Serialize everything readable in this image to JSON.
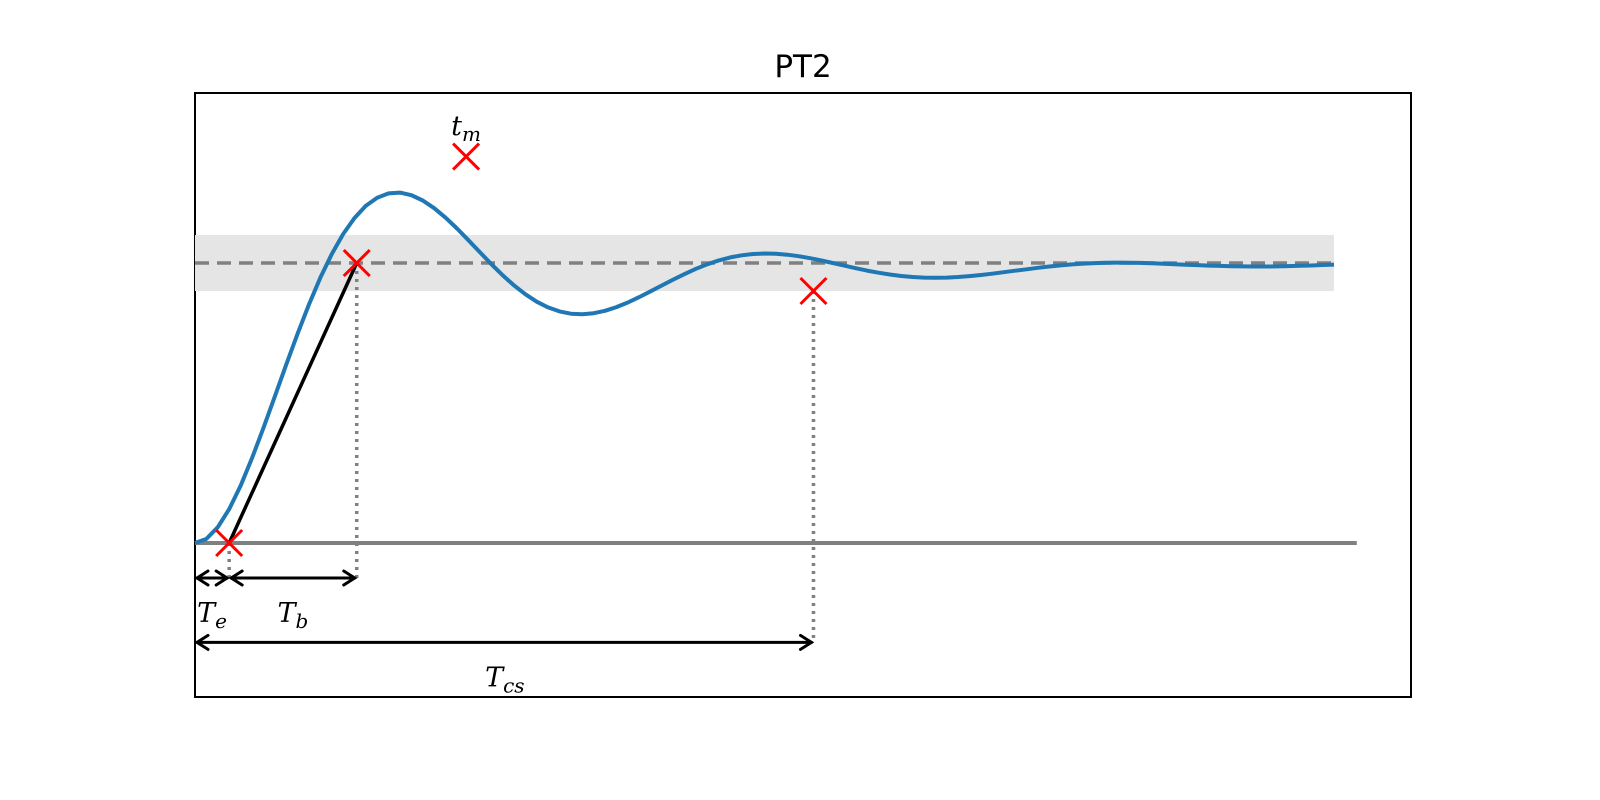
{
  "chart_data": {
    "type": "line",
    "title": "PT2",
    "xlabel": "",
    "ylabel": "",
    "xlim": [
      0,
      10
    ],
    "ylim": [
      -0.27,
      1.4
    ],
    "grid": false,
    "axis_ticks": false,
    "series": [
      {
        "values_x": [
          0,
          0.1,
          0.2,
          0.3,
          0.4,
          0.5,
          0.6,
          0.7,
          0.8,
          0.9,
          1.0,
          1.1,
          1.2,
          1.3,
          1.4,
          1.5,
          1.6,
          1.7,
          1.8,
          1.9,
          2.0,
          2.1,
          2.2,
          2.3,
          2.4,
          2.5,
          2.6,
          2.7,
          2.8,
          2.9,
          3.0,
          3.1,
          3.2,
          3.3,
          3.4,
          3.5,
          3.6,
          3.7,
          3.8,
          3.9,
          4.0,
          4.1,
          4.2,
          4.3,
          4.4,
          4.5,
          4.6,
          4.7,
          4.8,
          4.9,
          5.0,
          5.1,
          5.2,
          5.3,
          5.4,
          5.5,
          5.6,
          5.7,
          5.8,
          5.9,
          6.0,
          6.1,
          6.2,
          6.3,
          6.4,
          6.5,
          6.6,
          6.7,
          6.8,
          6.9,
          7.0,
          7.1,
          7.2,
          7.3,
          7.4,
          7.5,
          7.6,
          7.7,
          7.8,
          7.9,
          8.0,
          8.1,
          8.2,
          8.3,
          8.4,
          8.5,
          8.6,
          8.7,
          8.8,
          8.9,
          9.0,
          9.1,
          9.2,
          9.3,
          9.4,
          9.5,
          9.6,
          9.7,
          9.8,
          9.9,
          10.0
        ],
        "values_y": [
          0,
          0.0148,
          0.0565,
          0.1211,
          0.2044,
          0.3021,
          0.4096,
          0.5223,
          0.6361,
          0.7469,
          0.8516,
          0.9472,
          1.0316,
          1.1031,
          1.1608,
          1.2042,
          1.2333,
          1.2487,
          1.2513,
          1.2423,
          1.2233,
          1.1958,
          1.1618,
          1.1231,
          1.0815,
          1.0388,
          0.9968,
          0.9569,
          0.9204,
          0.8885,
          0.8619,
          0.8413,
          0.827,
          0.8189,
          0.8169,
          0.8206,
          0.8294,
          0.8425,
          0.8591,
          0.8782,
          0.8989,
          0.9201,
          0.9412,
          0.9612,
          0.9796,
          0.9957,
          1.0093,
          1.0199,
          1.0276,
          1.0323,
          1.034,
          1.0331,
          1.0298,
          1.0243,
          1.0172,
          1.0089,
          0.9999,
          0.9906,
          0.9815,
          0.9729,
          0.9653,
          0.9588,
          0.9537,
          0.95,
          0.9478,
          0.9472,
          0.948,
          0.95,
          0.9532,
          0.9572,
          0.9619,
          0.967,
          0.9724,
          0.9776,
          0.9827,
          0.9874,
          0.9915,
          0.995,
          0.9977,
          0.9997,
          1.0009,
          1.0013,
          1.0011,
          1.0003,
          0.9991,
          0.9976,
          0.9958,
          0.9941,
          0.9924,
          0.9908,
          0.9895,
          0.9885,
          0.9878,
          0.9875,
          0.9876,
          0.988,
          0.9888,
          0.9899,
          0.9912,
          0.9927,
          0.9943
        ],
        "color": "#1f77b4"
      }
    ],
    "reference_lines": {
      "final_value": 1.0,
      "baseline": 0.0,
      "tolerance_band": [
        0.9,
        1.1
      ],
      "band_color": "#e5e5e5",
      "line_color": "#808080"
    },
    "tangent": {
      "from": [
        0.3,
        0.0
      ],
      "to": [
        1.42,
        1.0
      ],
      "color": "#000000"
    },
    "markers": [
      {
        "x": 0.3,
        "y": 0.0,
        "color": "#ff0000"
      },
      {
        "x": 1.42,
        "y": 1.0,
        "color": "#ff0000"
      },
      {
        "x": 2.38,
        "y": 1.38,
        "color": "#ff0000"
      },
      {
        "x": 5.43,
        "y": 0.9,
        "color": "#ff0000"
      }
    ],
    "annotations": [
      {
        "base": "t",
        "sub": "m",
        "x": 2.38,
        "y": 1.49
      },
      {
        "base": "T",
        "sub": "e",
        "x": 0.15,
        "y": -0.25,
        "arrow": [
          0,
          0.3
        ],
        "arrow_y": -0.125
      },
      {
        "base": "T",
        "sub": "b",
        "x": 0.86,
        "y": -0.25,
        "arrow": [
          0.3,
          1.42
        ],
        "arrow_y": -0.125
      },
      {
        "base": "T",
        "sub": "cs",
        "x": 2.72,
        "y": -0.48,
        "arrow": [
          0,
          5.43
        ],
        "arrow_y": -0.355
      }
    ]
  }
}
